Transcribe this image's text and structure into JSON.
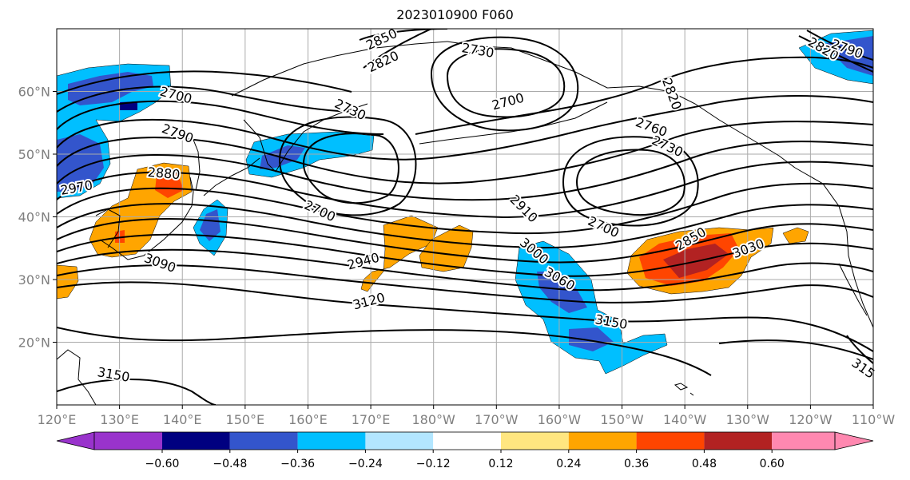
{
  "title": "2023010900 F060",
  "map": {
    "lon_ticks": [
      "120°E",
      "130°E",
      "140°E",
      "150°E",
      "160°E",
      "170°E",
      "180°W",
      "170°W",
      "160°W",
      "150°W",
      "140°W",
      "130°W",
      "120°W",
      "110°W"
    ],
    "lat_ticks": [
      "60°N",
      "50°N",
      "40°N",
      "30°N",
      "20°N"
    ],
    "lon_range": [
      120,
      250
    ],
    "lat_range": [
      10,
      70
    ],
    "gridlines": true,
    "contour_color": "#000000",
    "contour_labels": [
      "2850",
      "2820",
      "2730",
      "2700",
      "2730",
      "2700",
      "2790",
      "2880",
      "2970",
      "3090",
      "2700",
      "2940",
      "2910",
      "3000",
      "3060",
      "3120",
      "3150",
      "3150",
      "2760",
      "2730",
      "2820",
      "2700",
      "2850",
      "3030",
      "2820",
      "2790",
      "315"
    ]
  },
  "colorbar": {
    "labels": [
      "−0.60",
      "−0.48",
      "−0.36",
      "−0.24",
      "−0.12",
      "0.12",
      "0.24",
      "0.36",
      "0.48",
      "0.60"
    ],
    "colors": [
      "#9933cc",
      "#000080",
      "#3355cc",
      "#00bfff",
      "#b3e6ff",
      "#ffffff",
      "#ffe680",
      "#ffa500",
      "#ff4500",
      "#b22222",
      "#ff88b0"
    ]
  }
}
